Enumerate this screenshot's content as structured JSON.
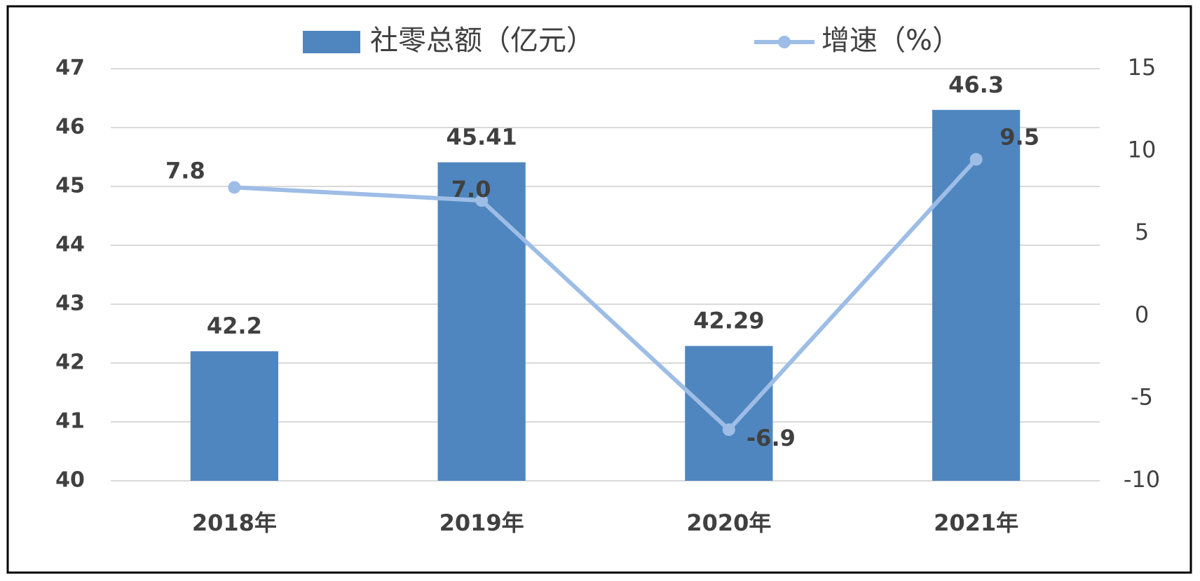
{
  "chart_data": {
    "type": "combo",
    "categories": [
      "2018年",
      "2019年",
      "2020年",
      "2021年"
    ],
    "series": [
      {
        "name": "社零总额（亿元）",
        "type": "bar",
        "color": "#4f86bf",
        "values": [
          42.2,
          45.41,
          42.29,
          46.3
        ]
      },
      {
        "name": "增速（%）",
        "type": "line",
        "axis": "y2",
        "color": "#9dbde6",
        "values": [
          7.8,
          7.0,
          -6.9,
          9.5
        ],
        "value_labels": [
          "7.8",
          "7.0",
          "-6.9",
          "9.5"
        ]
      }
    ],
    "ylim": [
      40,
      47
    ],
    "yticks": [
      40,
      41,
      42,
      43,
      44,
      45,
      46,
      47
    ],
    "y2lim": [
      -10,
      15
    ],
    "y2ticks": [
      -10,
      -5,
      0,
      5,
      10,
      15
    ],
    "grid": true,
    "legend": "top"
  }
}
